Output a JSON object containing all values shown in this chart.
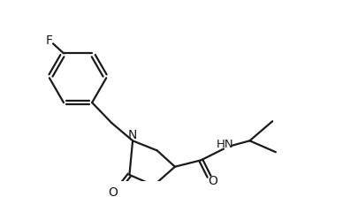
{
  "background_color": "#ffffff",
  "line_color": "#1a1a1a",
  "line_width": 1.6,
  "text_color": "#1a1a1a",
  "label_F": "F",
  "label_N": "N",
  "label_O1": "O",
  "label_O2": "O",
  "label_HN": "HN",
  "font_size": 9.5
}
